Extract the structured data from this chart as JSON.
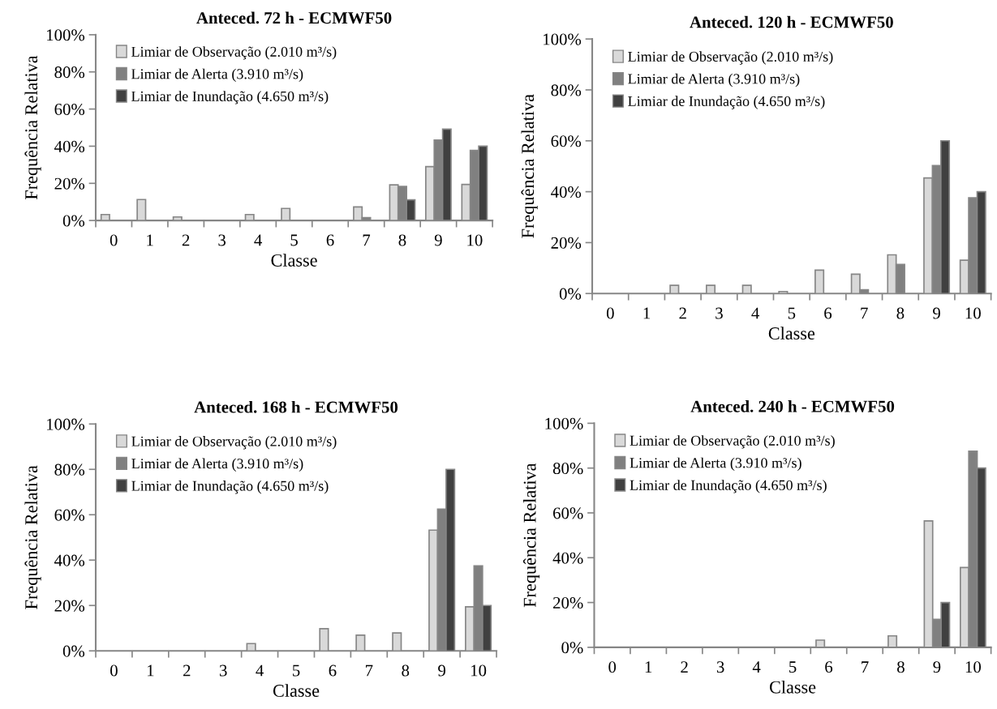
{
  "chart_data": [
    {
      "type": "bar",
      "title": "Anteced. 72 h - ECMWF50",
      "xlabel": "Classe",
      "ylabel": "Frequência Relativa",
      "categories": [
        "0",
        "1",
        "2",
        "3",
        "4",
        "5",
        "6",
        "7",
        "8",
        "9",
        "10"
      ],
      "series": [
        {
          "name": "Limiar de Observação (2.010 m³/s)",
          "color": "#d9d9d9",
          "values": [
            3.2,
            11.3,
            1.9,
            null,
            3.2,
            6.5,
            null,
            7.3,
            19.2,
            29,
            19.4
          ]
        },
        {
          "name": "Limiar de Alerta (3.910 m³/s)",
          "color": "#808080",
          "values": [
            null,
            null,
            null,
            null,
            null,
            null,
            null,
            1.5,
            18.3,
            43.3,
            37.7
          ]
        },
        {
          "name": "Limiar de Inundação (4.650 m³/s)",
          "color": "#404040",
          "values": [
            null,
            null,
            null,
            null,
            null,
            null,
            null,
            null,
            11.1,
            49.2,
            40
          ]
        }
      ],
      "ylim": [
        0,
        100
      ],
      "yticks": [
        {
          "value": 0,
          "label": "0%"
        },
        {
          "value": 20,
          "label": "20%"
        },
        {
          "value": 40,
          "label": "40%"
        },
        {
          "value": 60,
          "label": "60%"
        },
        {
          "value": 80,
          "label": "80%"
        },
        {
          "value": 100,
          "label": "100%"
        }
      ],
      "legend": "top left",
      "grid": false
    },
    {
      "type": "bar",
      "title": "Anteced. 120 h - ECMWF50",
      "xlabel": "Classe",
      "ylabel": "Frequência Relativa",
      "categories": [
        "0",
        "1",
        "2",
        "3",
        "4",
        "5",
        "6",
        "7",
        "8",
        "9",
        "10"
      ],
      "series": [
        {
          "name": "Limiar de Observação (2.010 m³/s)",
          "color": "#d9d9d9",
          "values": [
            null,
            null,
            3.2,
            3.2,
            3.2,
            0.8,
            9.2,
            7.6,
            15.2,
            45.4,
            13.1
          ]
        },
        {
          "name": "Limiar de Alerta (3.910 m³/s)",
          "color": "#808080",
          "values": [
            null,
            null,
            null,
            null,
            null,
            null,
            null,
            1.5,
            11.4,
            50.3,
            37.6
          ]
        },
        {
          "name": "Limiar de Inundação (4.650 m³/s)",
          "color": "#404040",
          "values": [
            null,
            null,
            null,
            null,
            null,
            null,
            null,
            null,
            null,
            60,
            40
          ]
        }
      ],
      "ylim": [
        0,
        100
      ],
      "yticks": [
        {
          "value": 0,
          "label": "0%"
        },
        {
          "value": 20,
          "label": "20%"
        },
        {
          "value": 40,
          "label": "40%"
        },
        {
          "value": 60,
          "label": "60%"
        },
        {
          "value": 80,
          "label": "80%"
        },
        {
          "value": 100,
          "label": "100%"
        }
      ],
      "legend": "top left",
      "grid": false
    },
    {
      "type": "bar",
      "title": "Anteced. 168 h - ECMWF50",
      "xlabel": "Classe",
      "ylabel": "Frequência Relativa",
      "categories": [
        "0",
        "1",
        "2",
        "3",
        "4",
        "5",
        "6",
        "7",
        "8",
        "9",
        "10"
      ],
      "series": [
        {
          "name": "Limiar de Observação (2.010 m³/s)",
          "color": "#d9d9d9",
          "values": [
            null,
            null,
            null,
            null,
            3.2,
            null,
            9.8,
            6.9,
            7.9,
            53.2,
            19.4
          ]
        },
        {
          "name": "Limiar de Alerta (3.910 m³/s)",
          "color": "#808080",
          "values": [
            null,
            null,
            null,
            null,
            null,
            null,
            null,
            null,
            null,
            62.5,
            37.5
          ]
        },
        {
          "name": "Limiar de Inundação (4.650 m³/s)",
          "color": "#404040",
          "values": [
            null,
            null,
            null,
            null,
            null,
            null,
            null,
            null,
            null,
            80,
            20
          ]
        }
      ],
      "ylim": [
        0,
        100
      ],
      "yticks": [
        {
          "value": 0,
          "label": "0%"
        },
        {
          "value": 20,
          "label": "20%"
        },
        {
          "value": 40,
          "label": "40%"
        },
        {
          "value": 60,
          "label": "60%"
        },
        {
          "value": 80,
          "label": "80%"
        },
        {
          "value": 100,
          "label": "100%"
        }
      ],
      "legend": "top left",
      "grid": false
    },
    {
      "type": "bar",
      "title": "Anteced. 240 h - ECMWF50",
      "xlabel": "Classe",
      "ylabel": "Frequência Relativa",
      "categories": [
        "0",
        "1",
        "2",
        "3",
        "4",
        "5",
        "6",
        "7",
        "8",
        "9",
        "10"
      ],
      "series": [
        {
          "name": "Limiar de Observação (2.010 m³/s)",
          "color": "#d9d9d9",
          "values": [
            null,
            null,
            null,
            null,
            null,
            null,
            3.2,
            null,
            5.1,
            56.4,
            35.6
          ]
        },
        {
          "name": "Limiar de Alerta (3.910 m³/s)",
          "color": "#808080",
          "values": [
            null,
            null,
            null,
            null,
            null,
            null,
            null,
            null,
            null,
            12.5,
            87.5
          ]
        },
        {
          "name": "Limiar de Inundação (4.650 m³/s)",
          "color": "#404040",
          "values": [
            null,
            null,
            null,
            null,
            null,
            null,
            null,
            null,
            null,
            20,
            80
          ]
        }
      ],
      "ylim": [
        0,
        100
      ],
      "yticks": [
        {
          "value": 0,
          "label": "0%"
        },
        {
          "value": 20,
          "label": "20%"
        },
        {
          "value": 40,
          "label": "40%"
        },
        {
          "value": 60,
          "label": "60%"
        },
        {
          "value": 80,
          "label": "80%"
        },
        {
          "value": 100,
          "label": "100%"
        }
      ],
      "legend": "top left",
      "grid": false
    }
  ]
}
